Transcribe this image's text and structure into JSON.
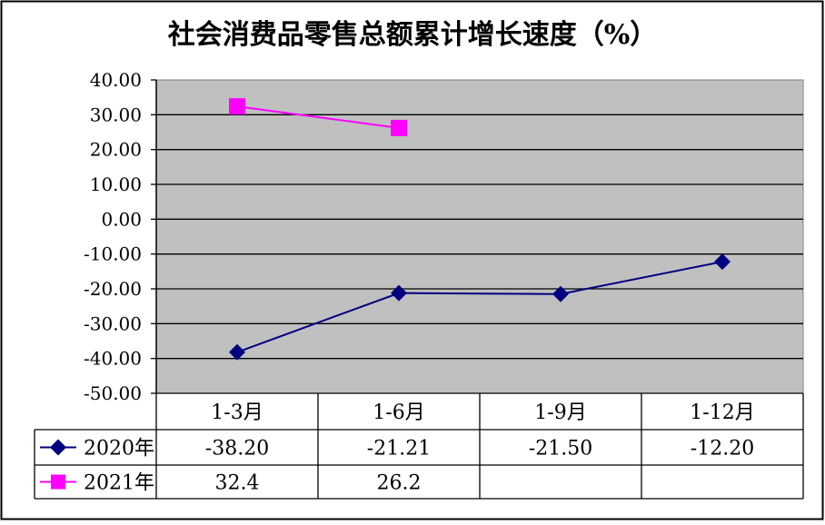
{
  "chart_data": {
    "type": "line",
    "title": "社会消费品零售总额累计增长速度（%）",
    "categories": [
      "1-3月",
      "1-6月",
      "1-9月",
      "1-12月"
    ],
    "ylim": [
      -50,
      40
    ],
    "yticks": [
      "40.00",
      "30.00",
      "20.00",
      "10.00",
      "0.00",
      "-10.00",
      "-20.00",
      "-30.00",
      "-40.00",
      "-50.00"
    ],
    "grid": true,
    "legend": "data-table-bottom",
    "series": [
      {
        "name": "2020年",
        "values": [
          -38.2,
          -21.21,
          -21.5,
          -12.2
        ],
        "labels": [
          "-38.20",
          "-21.21",
          "-21.50",
          "-12.20"
        ],
        "marker": "diamond",
        "color": "#000080"
      },
      {
        "name": "2021年",
        "values": [
          32.4,
          26.2,
          null,
          null
        ],
        "labels": [
          "32.4",
          "26.2",
          "",
          ""
        ],
        "marker": "square",
        "color": "#FF00FF"
      }
    ],
    "plot_background": "#C0C0C0"
  }
}
